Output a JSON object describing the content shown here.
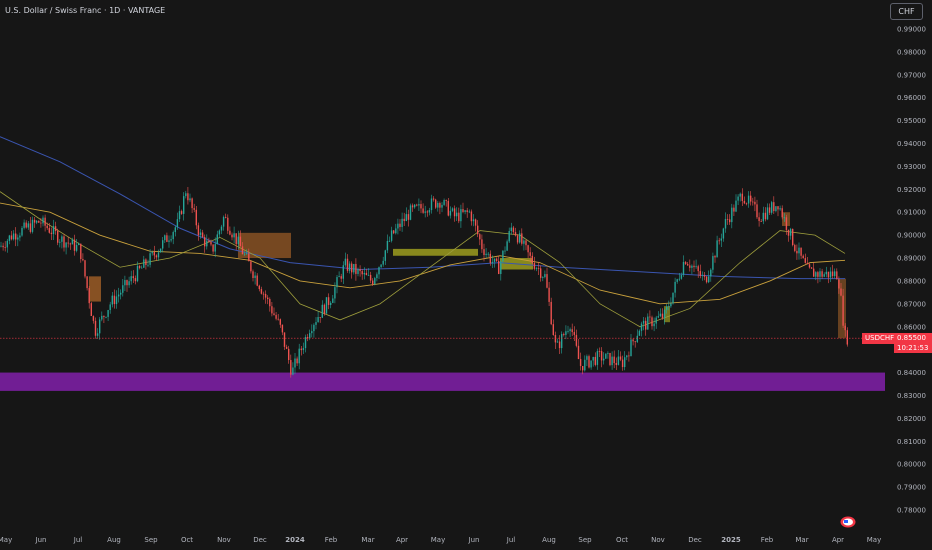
{
  "header": {
    "symbol_title": "U.S. Dollar / Swiss Franc · 1D · VANTAGE",
    "currency_button": "CHF"
  },
  "last_price": {
    "symbol": "USDCHF",
    "value": "0.85500",
    "countdown": "10:21:53",
    "color": "#f23645"
  },
  "colors": {
    "background": "#161616",
    "bull": "#26a69a",
    "bear": "#ef5350",
    "ma_fast": "#9e9e3c",
    "ma_mid": "#c8a03c",
    "ma_slow": "#3a55b0",
    "support_zone": "#7b1fa2",
    "bull_zone": "#9c9c1f",
    "bear_zone": "#b86b2a"
  },
  "chart_data": {
    "type": "candlestick",
    "y_axis": {
      "side": "right",
      "ylim": [
        0.775,
        0.995
      ],
      "tick_labels": [
        "0.99000",
        "0.98000",
        "0.97000",
        "0.96000",
        "0.95000",
        "0.94000",
        "0.93000",
        "0.92000",
        "0.91000",
        "0.90000",
        "0.89000",
        "0.88000",
        "0.87000",
        "0.86000",
        "0.85000",
        "0.84000",
        "0.83000",
        "0.82000",
        "0.81000",
        "0.80000",
        "0.79000",
        "0.78000"
      ]
    },
    "x_axis": {
      "tick_labels": [
        "May",
        "Jun",
        "Jul",
        "Aug",
        "Sep",
        "Oct",
        "Nov",
        "Dec",
        "2024",
        "Feb",
        "Mar",
        "Apr",
        "May",
        "Jun",
        "Jul",
        "Aug",
        "Sep",
        "Oct",
        "Nov",
        "Dec",
        "2025",
        "Feb",
        "Mar",
        "Apr",
        "May"
      ]
    },
    "price_path": [
      [
        "May",
        0.895
      ],
      [
        "Jun",
        0.906
      ],
      [
        "Jul",
        0.89
      ],
      [
        "Jul",
        0.858
      ],
      [
        "Aug",
        0.875
      ],
      [
        "Sep",
        0.89
      ],
      [
        "Oct",
        0.92
      ],
      [
        "Oct",
        0.905
      ],
      [
        "Nov",
        0.909
      ],
      [
        "Dec",
        0.875
      ],
      [
        "2024",
        0.84
      ],
      [
        "Feb",
        0.87
      ],
      [
        "Mar",
        0.885
      ],
      [
        "Apr",
        0.91
      ],
      [
        "May",
        0.915
      ],
      [
        "Jun",
        0.89
      ],
      [
        "Jul",
        0.905
      ],
      [
        "Jul",
        0.885
      ],
      [
        "Aug",
        0.85
      ],
      [
        "Sep",
        0.845
      ],
      [
        "Oct",
        0.85
      ],
      [
        "Nov",
        0.87
      ],
      [
        "Dec",
        0.89
      ],
      [
        "2025",
        0.918
      ],
      [
        "Feb",
        0.905
      ],
      [
        "Mar",
        0.882
      ],
      [
        "Apr",
        0.855
      ]
    ],
    "support_zone": [
      0.832,
      0.84
    ],
    "last_price": 0.855,
    "grid": false,
    "legend": "none"
  }
}
